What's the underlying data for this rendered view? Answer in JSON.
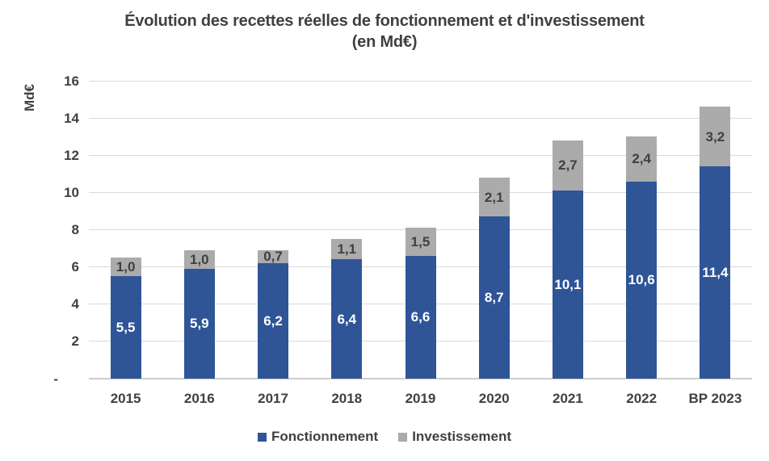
{
  "title": {
    "line1": "Évolution des recettes réelles de fonctionnement et d'investissement",
    "line2": "(en Md€)"
  },
  "y_axis": {
    "label": "Md€",
    "tick_labels": [
      "-",
      "2",
      "4",
      "6",
      "8",
      "10",
      "12",
      "14",
      "16"
    ]
  },
  "colors": {
    "fonctionnement": "#2F5597",
    "investissement": "#ABABAB",
    "text": "#404040",
    "gridline": "#D9D9D9"
  },
  "legend": {
    "items": [
      {
        "label": "Fonctionnement",
        "color": "#2F5597"
      },
      {
        "label": "Investissement",
        "color": "#ABABAB"
      }
    ]
  },
  "chart_data": {
    "type": "bar",
    "stacked": true,
    "title": "Évolution des recettes réelles de fonctionnement et d'investissement (en Md€)",
    "ylabel": "Md€",
    "ylim": [
      0,
      16
    ],
    "ytick_step": 2,
    "grid": true,
    "legend_position": "bottom",
    "categories": [
      "2015",
      "2016",
      "2017",
      "2018",
      "2019",
      "2020",
      "2021",
      "2022",
      "BP 2023"
    ],
    "series": [
      {
        "name": "Fonctionnement",
        "color": "#2F5597",
        "label_color": "#FFFFFF",
        "values": [
          5.5,
          5.9,
          6.2,
          6.4,
          6.6,
          8.7,
          10.1,
          10.6,
          11.4
        ],
        "labels": [
          "5,5",
          "5,9",
          "6,2",
          "6,4",
          "6,6",
          "8,7",
          "10,1",
          "10,6",
          "11,4"
        ]
      },
      {
        "name": "Investissement",
        "color": "#ABABAB",
        "label_color": "#404040",
        "values": [
          1.0,
          1.0,
          0.7,
          1.1,
          1.5,
          2.1,
          2.7,
          2.4,
          3.2
        ],
        "labels": [
          "1,0",
          "1,0",
          "0,7",
          "1,1",
          "1,5",
          "2,1",
          "2,7",
          "2,4",
          "3,2"
        ]
      }
    ]
  }
}
